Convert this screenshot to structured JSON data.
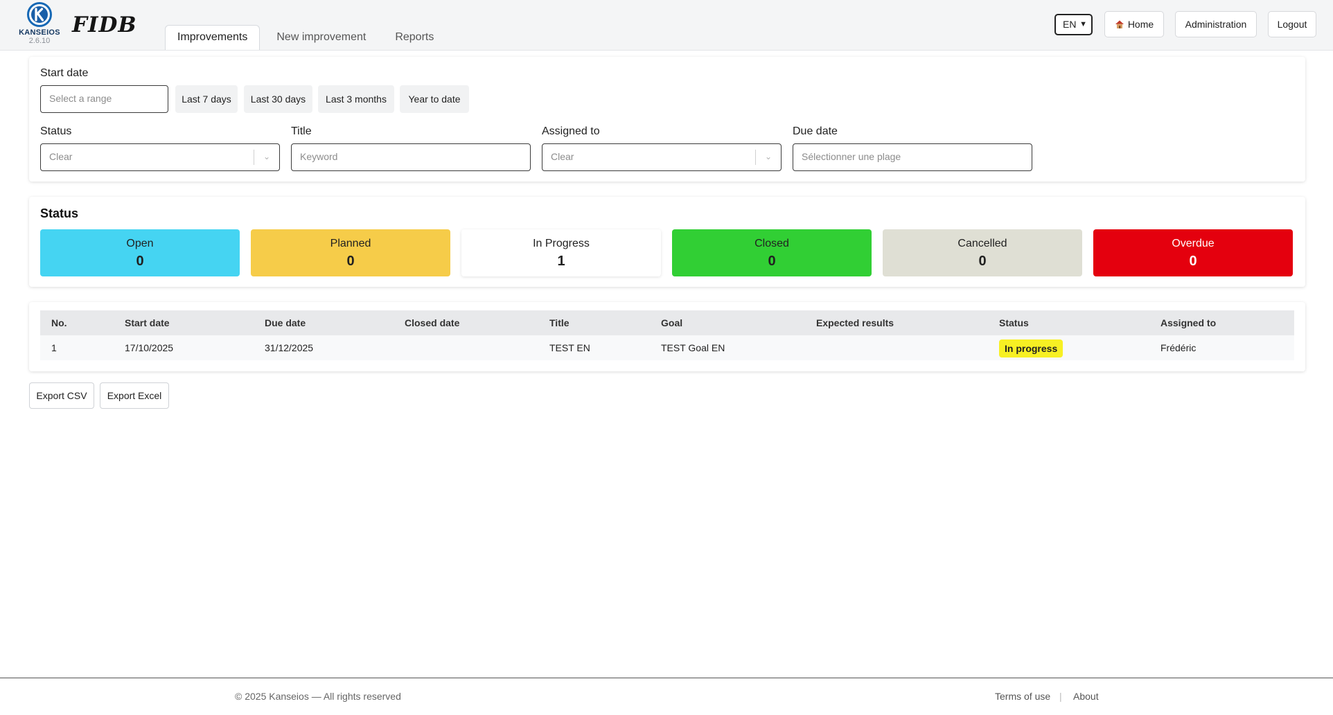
{
  "app": {
    "brand": "KANSEIOS",
    "version": "2.6.10",
    "logo_text": "FIDB"
  },
  "nav": {
    "tabs": [
      {
        "label": "Improvements",
        "active": true
      },
      {
        "label": "New improvement",
        "active": false
      },
      {
        "label": "Reports",
        "active": false
      }
    ],
    "language": "EN",
    "home_icon": "house-icon",
    "home_label": "Home",
    "admin_label": "Administration",
    "logout_label": "Logout"
  },
  "filters": {
    "start_date_label": "Start date",
    "start_date_placeholder": "Select a range",
    "quick_ranges": [
      "Last 7 days",
      "Last 30 days",
      "Last 3 months",
      "Year to date"
    ],
    "status_label": "Status",
    "status_value": "Clear",
    "title_label": "Title",
    "title_placeholder": "Keyword",
    "assigned_label": "Assigned to",
    "assigned_value": "Clear",
    "due_label": "Due date",
    "due_placeholder": "Sélectionner une plage"
  },
  "status_summary": {
    "title": "Status",
    "cards": [
      {
        "label": "Open",
        "count": "0",
        "color": "#45d4f2"
      },
      {
        "label": "Planned",
        "count": "0",
        "color": "#f6cc49"
      },
      {
        "label": "In Progress",
        "count": "1",
        "color": "#ffffff"
      },
      {
        "label": "Closed",
        "count": "0",
        "color": "#31cf34"
      },
      {
        "label": "Cancelled",
        "count": "0",
        "color": "#dfdfd4"
      },
      {
        "label": "Overdue",
        "count": "0",
        "color": "#e4000e"
      }
    ]
  },
  "table": {
    "columns": [
      "No.",
      "Start date",
      "Due date",
      "Closed date",
      "Title",
      "Goal",
      "Expected results",
      "Status",
      "Assigned to"
    ],
    "rows": [
      {
        "no": "1",
        "start": "17/10/2025",
        "due": "31/12/2025",
        "closed": "",
        "title": "TEST EN",
        "goal": "TEST Goal EN",
        "expected": "",
        "status": "In progress",
        "status_color": "#f7f023",
        "assigned": "Frédéric"
      }
    ]
  },
  "export": {
    "csv_label": "Export CSV",
    "excel_label": "Export Excel"
  },
  "footer": {
    "copyright": "© 2025 Kanseios — All rights reserved",
    "terms_label": "Terms of use",
    "separator": "|",
    "about_label": "About"
  }
}
